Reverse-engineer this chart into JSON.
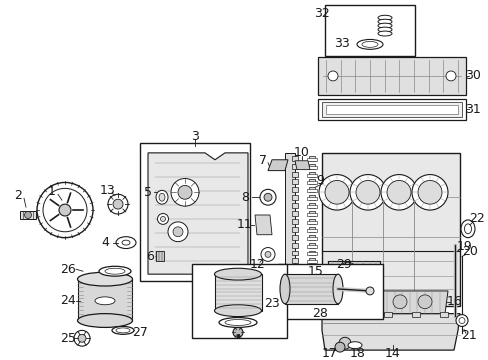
{
  "bg": "#ffffff",
  "lc": "#1a1a1a",
  "fs_label": 9,
  "fs_small": 7,
  "figsize": [
    4.89,
    3.6
  ],
  "dpi": 100
}
